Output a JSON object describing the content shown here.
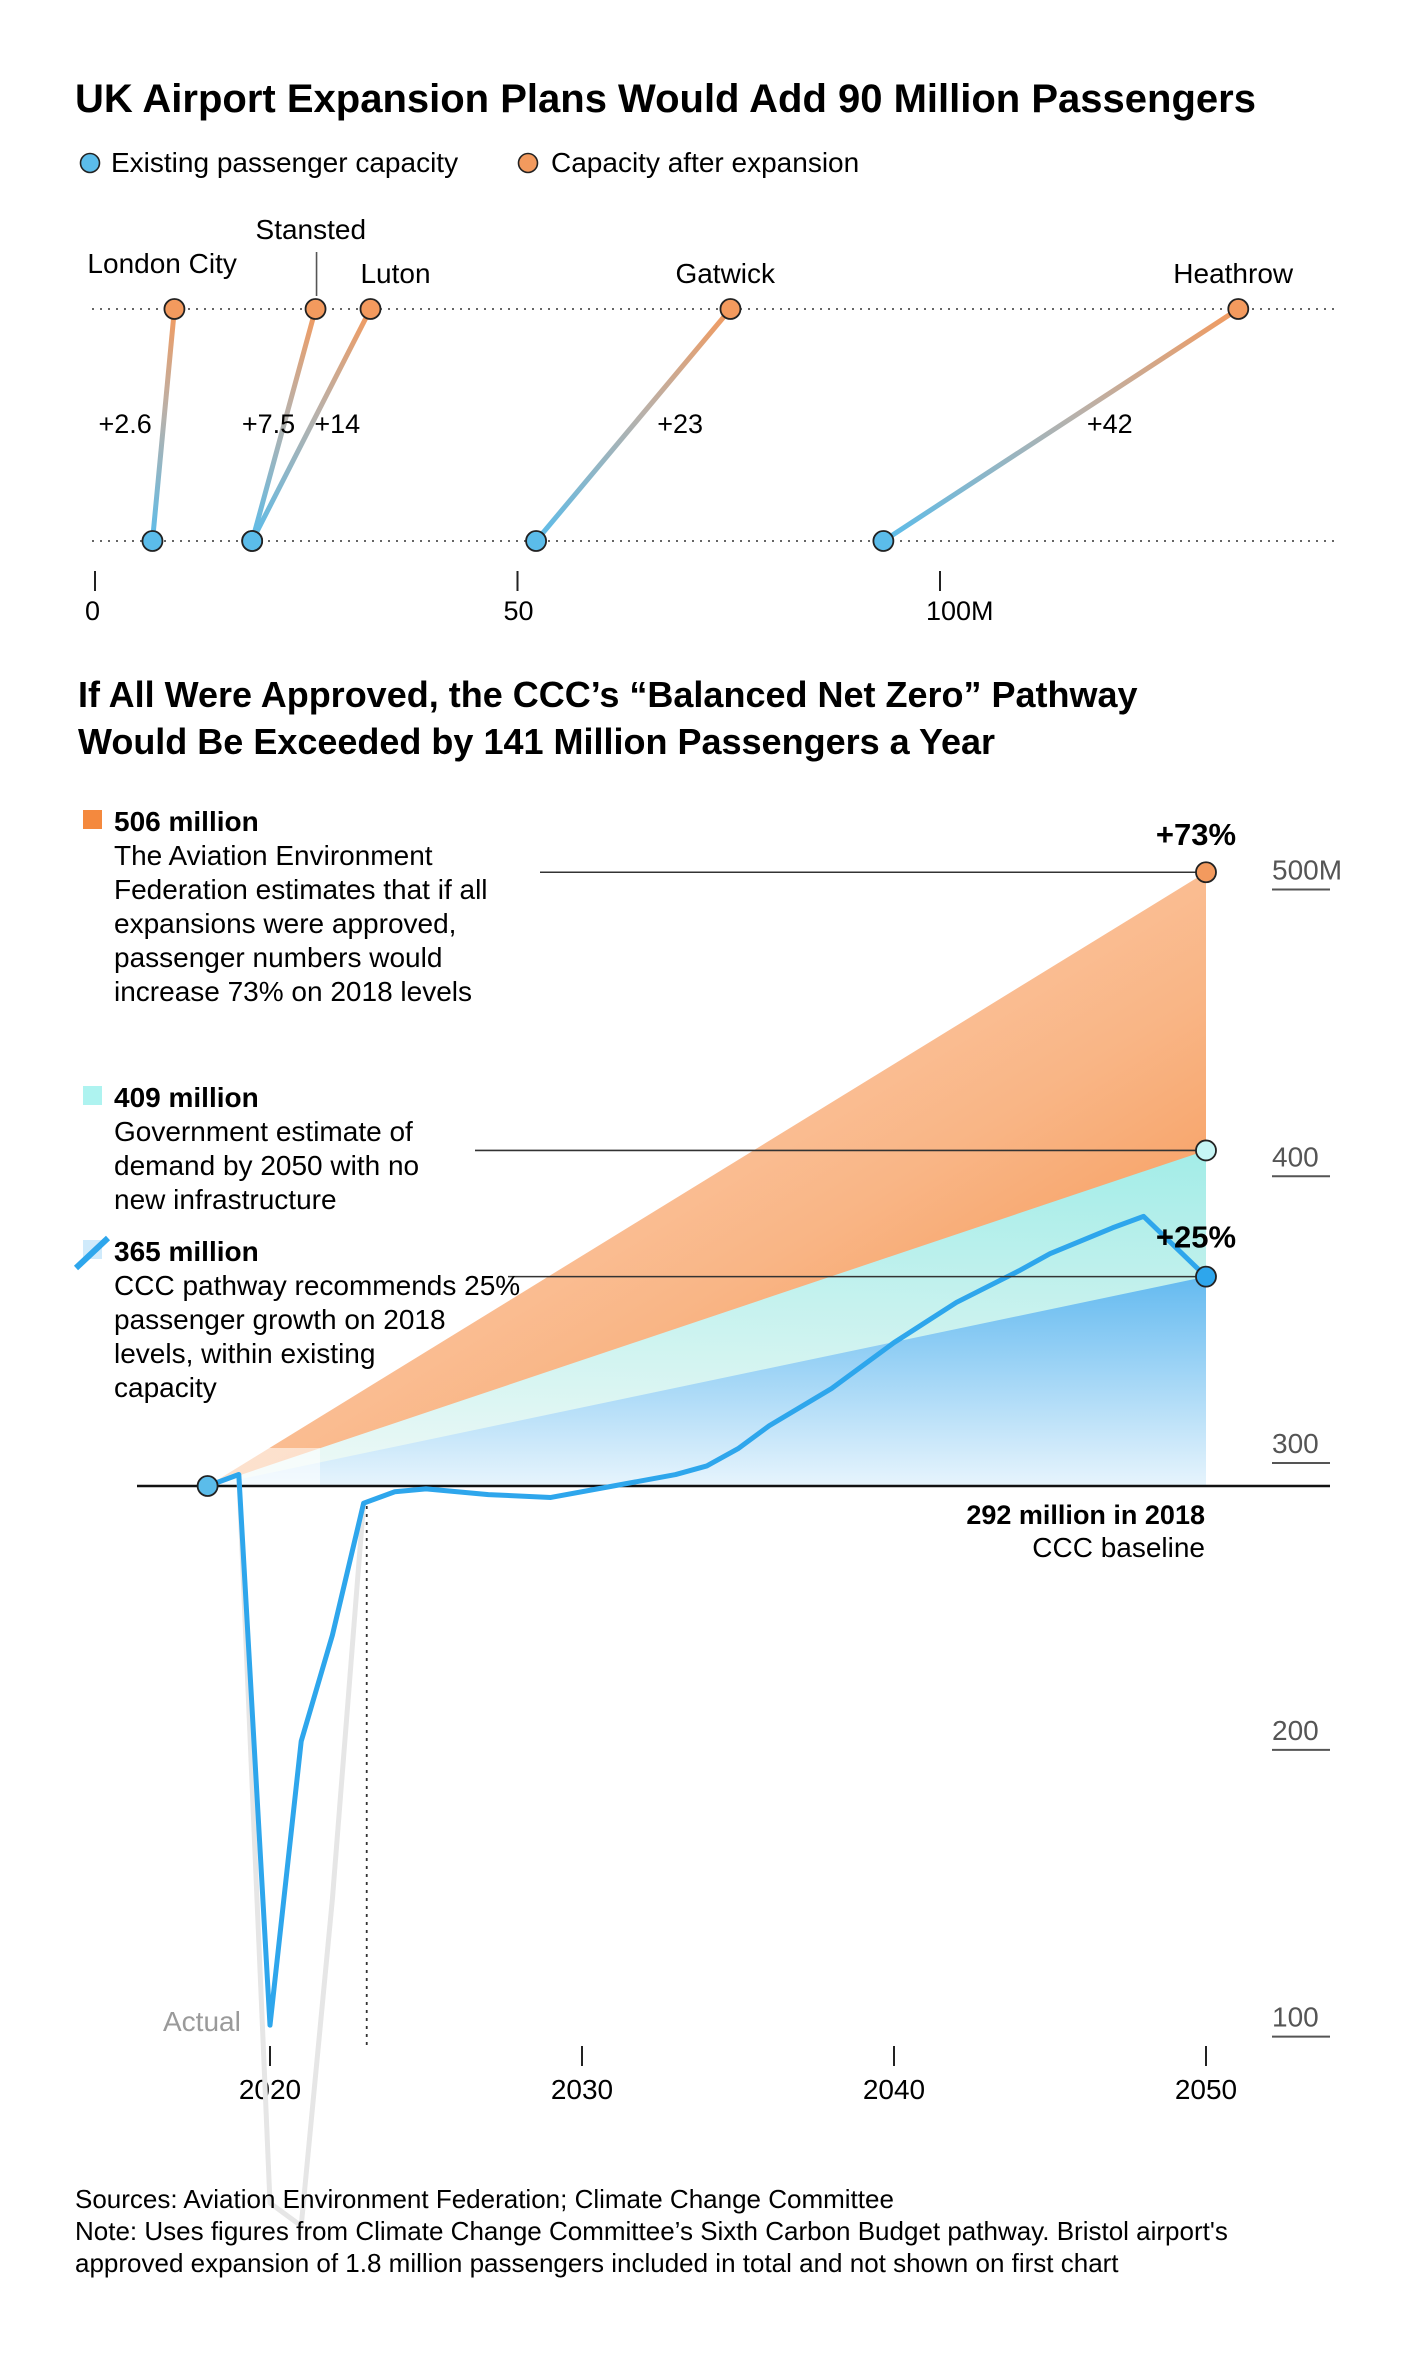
{
  "chart_data": [
    {
      "type": "dumbbell",
      "title": "UK Airport Expansion Plans Would Add 90 Million Passengers",
      "legend": [
        {
          "name": "Existing passenger capacity",
          "color": "#5bbcea"
        },
        {
          "name": "Capacity after expansion",
          "color": "#f39a5e"
        }
      ],
      "axis": {
        "min": 0,
        "max": 150,
        "ticks": [
          {
            "value": 0,
            "label": "0"
          },
          {
            "value": 50,
            "label": "50"
          },
          {
            "value": 100,
            "label": "100M"
          }
        ]
      },
      "airports": [
        {
          "name": "London City",
          "existing": 6.8,
          "after": 9.4,
          "delta_label": "+2.6"
        },
        {
          "name": "Stansted",
          "existing": 18.6,
          "after": 26.1,
          "delta_label": "+7.5"
        },
        {
          "name": "Luton",
          "existing": 18.6,
          "after": 32.6,
          "delta_label": "+14"
        },
        {
          "name": "Gatwick",
          "existing": 52.2,
          "after": 75.2,
          "delta_label": "+23"
        },
        {
          "name": "Heathrow",
          "existing": 93.3,
          "after": 135.3,
          "delta_label": "+42"
        }
      ]
    },
    {
      "type": "area",
      "title": "If All Were Approved, the CCC’s “Balanced Net Zero” Pathway Would Be Exceeded by 141 Million Passengers a Year",
      "x": {
        "min": 2015,
        "max": 2055,
        "ticks": [
          2020,
          2030,
          2040,
          2050
        ]
      },
      "y": {
        "min": 50,
        "max": 550,
        "ticks": [
          {
            "value": 100,
            "label": "100"
          },
          {
            "value": 200,
            "label": "200"
          },
          {
            "value": 300,
            "label": "300"
          },
          {
            "value": 400,
            "label": "400"
          },
          {
            "value": 500,
            "label": "500M"
          }
        ]
      },
      "baseline": {
        "value": 292,
        "label_bold": "292 million in 2018",
        "label": "CCC baseline"
      },
      "start_year": 2018,
      "scenarios": [
        {
          "name": "AEF all expansions",
          "value_2050": 506,
          "color": "#f4893e",
          "bold": "506 million",
          "text": "The Aviation Environment Federation estimates that if all expansions were approved, passenger numbers would increase 73% on 2018 levels",
          "pct": "+73%"
        },
        {
          "name": "Government no new infrastructure",
          "value_2050": 409,
          "color": "#aef3f0",
          "bold": "409 million",
          "text": "Government estimate of demand by 2050 with no new infrastructure",
          "pct": ""
        },
        {
          "name": "CCC pathway",
          "value_2050": 365,
          "color": "#2ea6ec",
          "bold": "365 million",
          "text": "CCC pathway recommends 25% passenger growth on 2018 levels, within existing capacity",
          "pct": "+25%"
        }
      ],
      "ccc_pathway": [
        [
          2018,
          292
        ],
        [
          2019,
          296
        ],
        [
          2020,
          104
        ],
        [
          2021,
          203
        ],
        [
          2022,
          240
        ],
        [
          2023,
          286
        ],
        [
          2024,
          290
        ],
        [
          2025,
          291
        ],
        [
          2027,
          289
        ],
        [
          2029,
          288
        ],
        [
          2031,
          292
        ],
        [
          2033,
          296
        ],
        [
          2034,
          299
        ],
        [
          2035,
          305
        ],
        [
          2036,
          313
        ],
        [
          2038,
          326
        ],
        [
          2040,
          342
        ],
        [
          2041,
          349
        ],
        [
          2042,
          356
        ],
        [
          2044,
          367
        ],
        [
          2045,
          373
        ],
        [
          2047,
          382
        ],
        [
          2048,
          386
        ],
        [
          2050,
          365
        ]
      ],
      "actual": {
        "label": "Actual",
        "points": [
          [
            2018,
            292
          ],
          [
            2019,
            296
          ],
          [
            2020,
            42
          ],
          [
            2021,
            34
          ],
          [
            2022,
            148
          ],
          [
            2023,
            286
          ]
        ]
      },
      "actual_divider_year": 2023.1
    }
  ],
  "sources": "Sources: Aviation Environment Federation; Climate Change Committee",
  "note": "Note: Uses figures from Climate Change Committee’s Sixth Carbon Budget pathway. Bristol airport's approved expansion of 1.8 million passengers included in total and not shown on first chart"
}
